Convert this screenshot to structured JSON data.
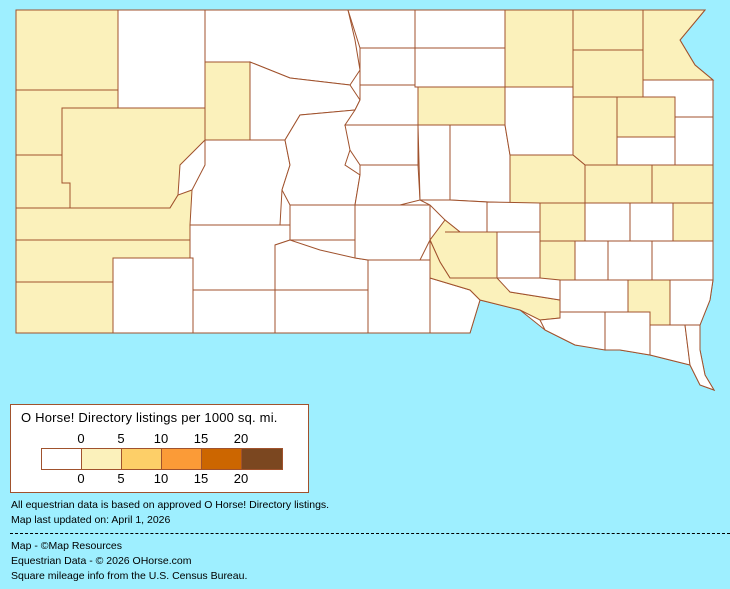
{
  "map": {
    "colors": {
      "background": "#9EEFFF",
      "border": "#A0522D",
      "level0": "#FFFFFF",
      "level1": "#FBF1BB"
    },
    "county_levels": [
      1,
      0,
      0,
      0,
      0,
      1,
      1,
      1,
      1,
      1,
      1,
      1,
      1,
      1,
      0,
      0,
      0,
      0,
      0,
      1,
      0,
      0,
      0,
      0,
      0,
      0,
      0,
      0,
      0,
      0,
      0,
      0,
      1,
      0,
      0,
      0,
      1,
      0,
      1,
      1,
      0,
      0,
      1,
      1,
      1,
      0,
      0,
      1,
      0,
      0,
      1,
      1,
      0,
      1,
      0,
      0,
      0,
      1,
      0,
      0,
      1,
      0,
      0
    ]
  },
  "legend": {
    "title": "O Horse! Directory listings per 1000 sq. mi.",
    "ticks_top": [
      "0",
      "5",
      "10",
      "15",
      "20"
    ],
    "ticks_bottom": [
      "0",
      "5",
      "10",
      "15",
      "20"
    ],
    "swatches": [
      "#FFFFFF",
      "#FBF1BB",
      "#FDCF68",
      "#FB9B37",
      "#CC6600",
      "#7B4720"
    ]
  },
  "notes": {
    "line1": "All equestrian data is based on approved O Horse! Directory listings.",
    "line2": "Map last updated on: April 1, 2026",
    "credit1": "Map - ©Map Resources",
    "credit2": "Equestrian Data - © 2026 OHorse.com",
    "credit3": "Square mileage info from the U.S. Census Bureau."
  }
}
